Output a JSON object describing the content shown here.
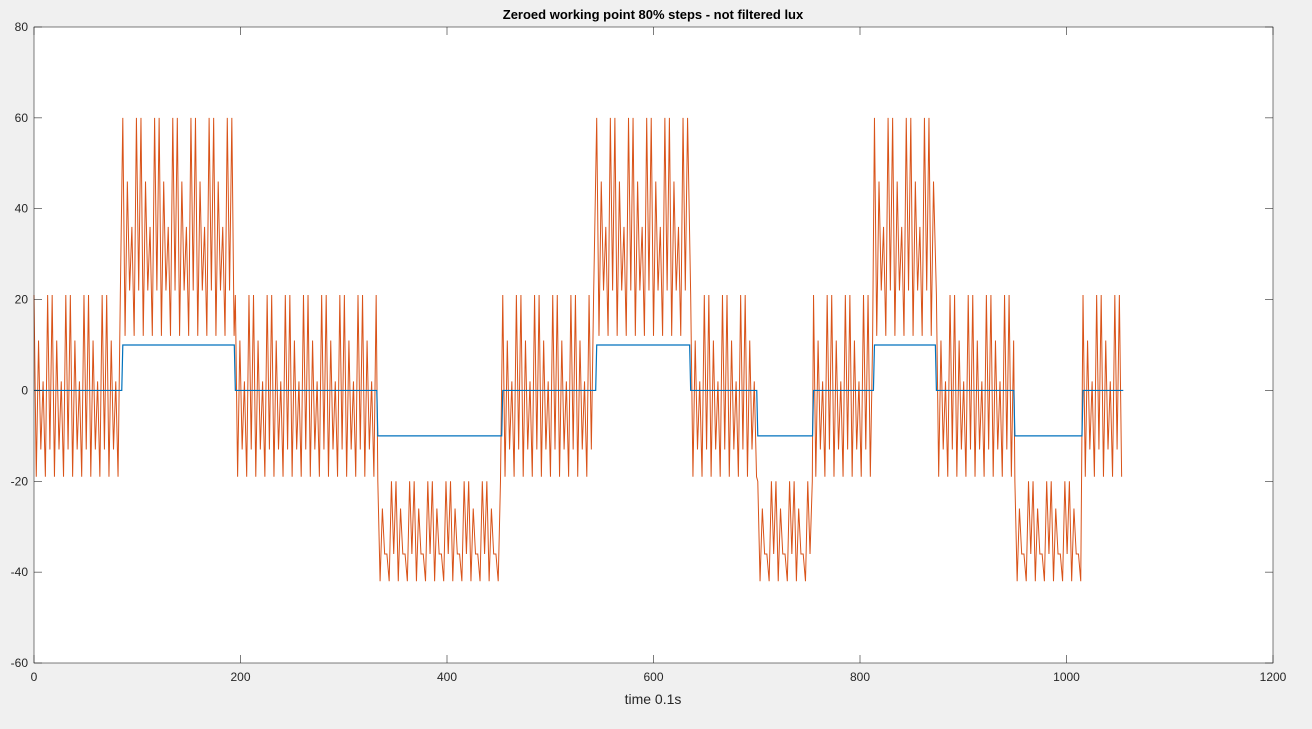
{
  "chart_data": {
    "type": "line",
    "title": "Zeroed working point 80% steps - not filtered lux",
    "xlabel": "time 0.1s",
    "ylabel": "",
    "xlim": [
      0,
      1200
    ],
    "ylim": [
      -60,
      80
    ],
    "xticks": [
      0,
      200,
      400,
      600,
      800,
      1000,
      1200
    ],
    "yticks": [
      -60,
      -40,
      -20,
      0,
      20,
      40,
      60,
      80
    ],
    "grid": false,
    "colors": {
      "setpoint": "#0072bd",
      "measured": "#d95319",
      "axes_background": "#ffffff",
      "figure_background": "#f0f0f0"
    },
    "series": [
      {
        "color": "#0072bd",
        "x": [
          0,
          85,
          86,
          194,
          195,
          332,
          333,
          453,
          454,
          544,
          545,
          635,
          636,
          700,
          701,
          754,
          755,
          813,
          814,
          873,
          874,
          949,
          950,
          1015,
          1016,
          1055
        ],
        "values": [
          0,
          0,
          10,
          10,
          0,
          0,
          -10,
          -10,
          0,
          0,
          10,
          10,
          0,
          0,
          -10,
          -10,
          0,
          0,
          10,
          10,
          0,
          0,
          -10,
          -10,
          0,
          0
        ]
      },
      {
        "color": "#d95319",
        "segments": [
          {
            "x_start": 0,
            "x_end": 85,
            "base": 0,
            "peaks": [
              21,
              11,
              2,
              -13,
              -19
            ]
          },
          {
            "x_start": 86,
            "x_end": 194,
            "base": 10,
            "peaks": [
              60,
              46,
              36,
              22,
              12
            ]
          },
          {
            "x_start": 195,
            "x_end": 332,
            "base": 0,
            "peaks": [
              21,
              11,
              2,
              -13,
              -19
            ]
          },
          {
            "x_start": 333,
            "x_end": 453,
            "base": -10,
            "peaks": [
              -20,
              -26,
              -36,
              -42
            ]
          },
          {
            "x_start": 454,
            "x_end": 544,
            "base": 0,
            "peaks": [
              21,
              11,
              2,
              -13,
              -19
            ]
          },
          {
            "x_start": 545,
            "x_end": 635,
            "base": 10,
            "peaks": [
              60,
              46,
              36,
              22,
              12
            ]
          },
          {
            "x_start": 636,
            "x_end": 700,
            "base": 0,
            "peaks": [
              21,
              11,
              2,
              -13,
              -19
            ]
          },
          {
            "x_start": 701,
            "x_end": 754,
            "base": -10,
            "peaks": [
              -20,
              -26,
              -36,
              -42
            ]
          },
          {
            "x_start": 755,
            "x_end": 813,
            "base": 0,
            "peaks": [
              21,
              11,
              2,
              -13,
              -19
            ]
          },
          {
            "x_start": 814,
            "x_end": 873,
            "base": 10,
            "peaks": [
              60,
              46,
              36,
              22,
              12
            ]
          },
          {
            "x_start": 874,
            "x_end": 949,
            "base": 0,
            "peaks": [
              21,
              11,
              2,
              -13,
              -19
            ]
          },
          {
            "x_start": 950,
            "x_end": 1015,
            "base": -10,
            "peaks": [
              -20,
              -26,
              -36,
              -42
            ]
          },
          {
            "x_start": 1016,
            "x_end": 1055,
            "base": 0,
            "peaks": [
              21,
              11,
              2,
              -13,
              -19
            ]
          }
        ]
      }
    ]
  }
}
